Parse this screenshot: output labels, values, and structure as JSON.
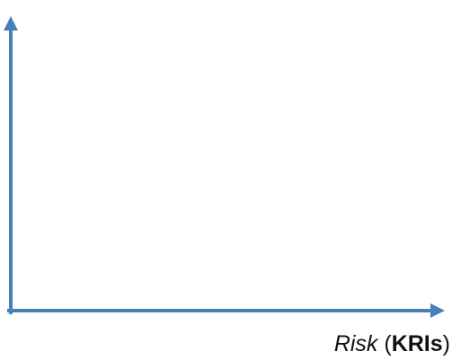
{
  "diagram": {
    "x_axis_label": {
      "italic": "Risk",
      "space": " ",
      "paren_open": "(",
      "bold": "KRIs",
      "paren_close": ")"
    },
    "colors": {
      "axis": "#4a7ebb",
      "text": "#111111"
    }
  }
}
